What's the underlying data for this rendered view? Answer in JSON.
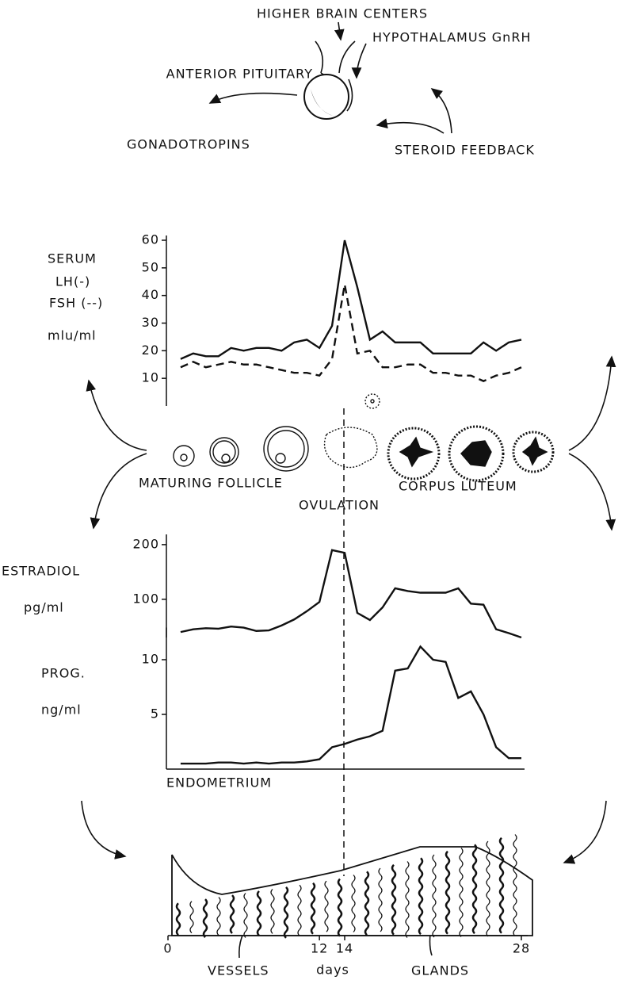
{
  "diagram": {
    "higher_brain": "HIGHER BRAIN CENTERS",
    "hypothalamus": "HYPOTHALAMUS GnRH",
    "pituitary": "ANTERIOR PITUITARY",
    "gonadotropins": "GONADOTROPINS",
    "feedback": "STEROID FEEDBACK",
    "follicle": "MATURING FOLLICLE",
    "luteum": "CORPUS LUTEUM",
    "ovulation": "OVULATION",
    "endometrium": "ENDOMETRIUM",
    "vessels": "VESSELS",
    "glands": "GLANDS"
  },
  "chart_data": [
    {
      "type": "line",
      "ylabel": "SERUM",
      "unit": "mlu/ml",
      "x": [
        1,
        2,
        3,
        4,
        5,
        6,
        7,
        8,
        9,
        10,
        11,
        12,
        13,
        14,
        15,
        16,
        17,
        18,
        19,
        20,
        21,
        22,
        23,
        24,
        25,
        26,
        27,
        28
      ],
      "series": [
        {
          "name": "LH(-)",
          "color": "#111",
          "line_style": "solid",
          "values": [
            17,
            19,
            18,
            18,
            21,
            20,
            21,
            21,
            20,
            23,
            24,
            21,
            29,
            60,
            43,
            24,
            27,
            23,
            23,
            23,
            19,
            19,
            19,
            19,
            23,
            20,
            23,
            24
          ]
        },
        {
          "name": "FSH (--)",
          "color": "#111",
          "line_style": "dashed",
          "values": [
            14,
            16,
            14,
            15,
            16,
            15,
            15,
            14,
            13,
            12,
            12,
            11,
            17,
            44,
            19,
            20,
            14,
            14,
            15,
            15,
            12,
            12,
            11,
            11,
            9,
            11,
            12,
            14
          ]
        }
      ],
      "xlim": [
        0,
        28
      ],
      "ylim": [
        0,
        60
      ],
      "yticks": [
        10,
        20,
        30,
        40,
        50,
        60
      ]
    },
    {
      "type": "line",
      "ylabel": "ESTRADIOL",
      "unit": "pg/ml",
      "x": [
        1,
        2,
        3,
        4,
        5,
        6,
        7,
        8,
        9,
        10,
        11,
        12,
        13,
        14,
        15,
        16,
        17,
        18,
        19,
        20,
        21,
        22,
        23,
        24,
        25,
        26,
        27,
        28
      ],
      "series": [
        {
          "name": "ESTRADIOL",
          "color": "#111",
          "line_style": "solid",
          "values": [
            40,
            45,
            47,
            46,
            50,
            48,
            42,
            43,
            52,
            63,
            78,
            95,
            190,
            185,
            75,
            62,
            85,
            120,
            115,
            112,
            112,
            112,
            120,
            92,
            90,
            45,
            38,
            30
          ]
        }
      ],
      "xlim": [
        0,
        28
      ],
      "ylim": [
        30,
        210
      ],
      "yticks": [
        100,
        200
      ]
    },
    {
      "type": "line",
      "ylabel": "PROG.",
      "unit": "ng/ml",
      "xlabel": "days",
      "x": [
        1,
        2,
        3,
        4,
        5,
        6,
        7,
        8,
        9,
        10,
        11,
        12,
        13,
        14,
        15,
        16,
        17,
        18,
        19,
        20,
        21,
        22,
        23,
        24,
        25,
        26,
        27,
        28
      ],
      "series": [
        {
          "name": "PROG.",
          "color": "#111",
          "line_style": "solid",
          "values": [
            0.5,
            0.5,
            0.5,
            0.6,
            0.6,
            0.5,
            0.6,
            0.5,
            0.6,
            0.6,
            0.7,
            0.9,
            2,
            2.3,
            2.7,
            3,
            3.5,
            9,
            9.2,
            11.2,
            10,
            9.8,
            6.5,
            7.1,
            5,
            2,
            1,
            1
          ]
        }
      ],
      "xlim": [
        0,
        28
      ],
      "ylim": [
        0,
        12.5
      ],
      "yticks": [
        5,
        10
      ],
      "xticks": [
        0,
        12,
        14,
        28
      ]
    }
  ]
}
